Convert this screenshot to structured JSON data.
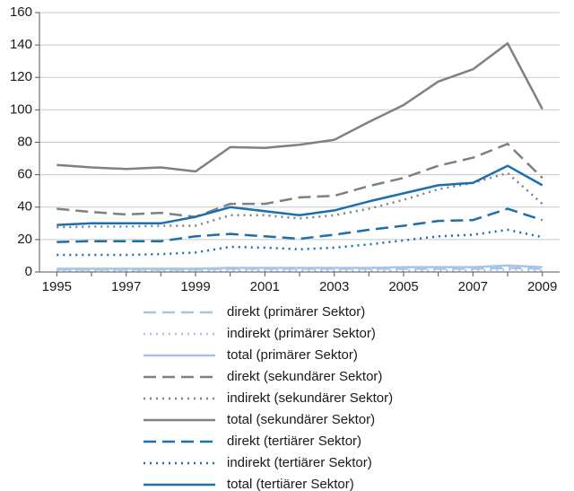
{
  "chart_data": {
    "type": "line",
    "categories": [
      "1995",
      null,
      "1997",
      null,
      "1999",
      null,
      "2001",
      null,
      "2003",
      null,
      "2005",
      null,
      "2007",
      null,
      "2009"
    ],
    "ylim": [
      0,
      160
    ],
    "yticks": [
      0,
      20,
      40,
      60,
      80,
      100,
      120,
      140,
      160
    ],
    "grid": true,
    "legend": "bottom",
    "series": [
      {
        "name": "direkt (primärer Sektor)",
        "color": "#a9c4e8",
        "style": "dashed",
        "values": [
          1.5,
          1.5,
          1.5,
          1.5,
          1.5,
          2,
          2,
          2,
          2,
          2,
          2,
          2,
          2,
          2.5,
          2
        ]
      },
      {
        "name": "indirekt (primärer Sektor)",
        "color": "#a9c4e8",
        "style": "dotted",
        "values": [
          1,
          1,
          1,
          1,
          1,
          1,
          1,
          1,
          1,
          1,
          1,
          1,
          1,
          1.5,
          1
        ]
      },
      {
        "name": "total (primärer Sektor)",
        "color": "#a9c4e8",
        "style": "solid",
        "values": [
          2,
          2,
          2,
          2,
          2,
          2.5,
          2.5,
          2.5,
          2.5,
          2.5,
          3,
          3,
          3,
          4,
          3
        ]
      },
      {
        "name": "direkt (sekundärer Sektor)",
        "color": "#808080",
        "style": "dashed",
        "values": [
          39,
          37,
          35.5,
          36.5,
          34,
          42,
          42,
          46,
          47,
          53,
          58,
          65.5,
          70.5,
          79,
          58
        ]
      },
      {
        "name": "indirekt (sekundärer Sektor)",
        "color": "#808080",
        "style": "dotted",
        "values": [
          27.5,
          28,
          28,
          28.5,
          28.5,
          35,
          35,
          33,
          35,
          39,
          44.5,
          51,
          55,
          61,
          42
        ]
      },
      {
        "name": "total (sekundärer Sektor)",
        "color": "#808080",
        "style": "solid",
        "values": [
          66,
          64.5,
          63.5,
          64.5,
          62,
          77,
          76.5,
          78.5,
          81.5,
          92.5,
          103,
          117.5,
          125,
          141,
          100.5
        ]
      },
      {
        "name": "direkt (tertiärer Sektor)",
        "color": "#1a6fad",
        "style": "dashed",
        "values": [
          18.5,
          19,
          19,
          19,
          22,
          23.5,
          22,
          20.5,
          23,
          26,
          28.5,
          31.5,
          32,
          39,
          32
        ]
      },
      {
        "name": "indirekt (tertiärer Sektor)",
        "color": "#1a6fad",
        "style": "dotted",
        "values": [
          10.5,
          10.5,
          10.5,
          11,
          12,
          15.5,
          15,
          14,
          15,
          17,
          19.5,
          22,
          23,
          26,
          21.5
        ]
      },
      {
        "name": "total (tertiärer Sektor)",
        "color": "#1a6fad",
        "style": "solid",
        "values": [
          29,
          30,
          30,
          30,
          34,
          40,
          37.5,
          35,
          38,
          43.5,
          48.5,
          53.5,
          55,
          65.5,
          53.5
        ]
      }
    ]
  }
}
